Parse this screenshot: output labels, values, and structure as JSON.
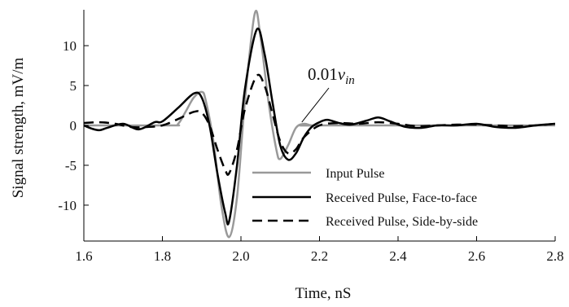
{
  "chart_data": {
    "type": "line",
    "xlabel": "Time, nS",
    "ylabel": "Signal strength, mV/m",
    "xlim": [
      1.6,
      2.8
    ],
    "ylim": [
      -14.5,
      14.5
    ],
    "xticks": [
      "1.6",
      "1.8",
      "2.0",
      "2.2",
      "2.4",
      "2.6",
      "2.8"
    ],
    "yticks": [
      "10",
      "5",
      "0",
      "-5",
      "-10"
    ],
    "ytick_values": [
      10,
      5,
      0,
      -5,
      -10
    ],
    "xtick_values": [
      1.6,
      1.8,
      2.0,
      2.2,
      2.4,
      2.6,
      2.8
    ],
    "grid": false,
    "legend_position": "bottom-right",
    "annotation": {
      "prefix": "0.01",
      "var": "v",
      "sub": "in",
      "points_to_x": 2.155,
      "points_to_y": 0.2
    },
    "series": [
      {
        "name": "Input Pulse",
        "color": "#999999",
        "dash": "solid",
        "x": [
          1.6,
          1.82,
          1.84,
          1.86,
          1.88,
          1.9,
          1.91,
          1.93,
          1.95,
          1.97,
          1.99,
          2.01,
          2.035,
          2.05,
          2.07,
          2.09,
          2.1,
          2.12,
          2.14,
          2.16,
          2.18,
          2.2,
          2.8
        ],
        "y": [
          0,
          0,
          0.2,
          1.8,
          3.5,
          4.2,
          3.2,
          -2,
          -10,
          -14,
          -9,
          3,
          14,
          11,
          3,
          -3,
          -4.2,
          -2.5,
          -0.3,
          0.2,
          0,
          0,
          0
        ]
      },
      {
        "name": "Received Pulse, Face-to-face",
        "color": "#000000",
        "dash": "solid",
        "x": [
          1.6,
          1.62,
          1.64,
          1.66,
          1.7,
          1.74,
          1.78,
          1.8,
          1.84,
          1.88,
          1.9,
          1.92,
          1.94,
          1.96,
          1.97,
          1.99,
          2.01,
          2.04,
          2.06,
          2.08,
          2.1,
          2.12,
          2.14,
          2.16,
          2.18,
          2.2,
          2.22,
          2.25,
          2.28,
          2.32,
          2.35,
          2.38,
          2.42,
          2.46,
          2.5,
          2.55,
          2.6,
          2.65,
          2.7,
          2.75,
          2.8
        ],
        "y": [
          0,
          -0.4,
          -0.6,
          -0.3,
          0.2,
          -0.5,
          0.4,
          0.5,
          2.2,
          4,
          3.5,
          0,
          -6,
          -11,
          -12,
          -5,
          4.5,
          12,
          9,
          3,
          -2.5,
          -4.3,
          -3.5,
          -1.5,
          -0.2,
          0.4,
          0.7,
          0.3,
          0.1,
          0.6,
          1,
          0.5,
          -0.2,
          -0.3,
          0,
          0,
          0.2,
          -0.2,
          -0.3,
          0,
          0.2
        ]
      },
      {
        "name": "Received Pulse, Side-by-side",
        "color": "#000000",
        "dash": "dashed",
        "x": [
          1.6,
          1.64,
          1.68,
          1.72,
          1.76,
          1.8,
          1.84,
          1.88,
          1.9,
          1.92,
          1.94,
          1.96,
          1.97,
          1.99,
          2.01,
          2.04,
          2.06,
          2.08,
          2.1,
          2.12,
          2.14,
          2.16,
          2.2,
          2.25,
          2.3,
          2.35,
          2.4,
          2.45,
          2.5,
          2.55,
          2.6,
          2.65,
          2.7,
          2.75,
          2.8
        ],
        "y": [
          0.3,
          0.4,
          0.2,
          -0.2,
          -0.2,
          0,
          0.8,
          1.7,
          1.6,
          0,
          -3,
          -5.6,
          -6,
          -3,
          2,
          6.2,
          5,
          1.5,
          -2,
          -3.5,
          -3,
          -1.5,
          0,
          0.3,
          0.2,
          0.4,
          0.2,
          -0.1,
          0,
          0.1,
          0.1,
          0,
          -0.1,
          0,
          0.2
        ]
      }
    ]
  }
}
